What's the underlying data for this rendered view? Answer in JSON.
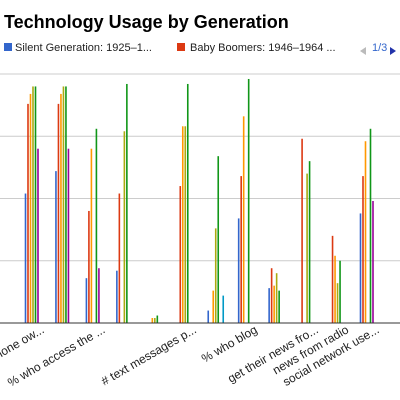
{
  "chart_data": {
    "type": "bar",
    "title": "Technology Usage by Generation",
    "xlabel": "",
    "ylabel": "",
    "ylim": [
      0,
      100
    ],
    "grid": true,
    "legend_position": "top",
    "legend_page": "1/3",
    "categories": [
      "% who own a cell phone",
      "% who own a cell phone",
      "% who access the ...",
      "% who access the ...",
      "# text messages",
      "# text messages p...",
      "# text messages p...",
      "% who blog",
      "% who blog",
      "get their news fro...",
      "news from radio",
      "social network use..."
    ],
    "tick_labels": [
      {
        "category_index": 0,
        "text": "phone ow..."
      },
      {
        "category_index": 2,
        "text": "% who access the ..."
      },
      {
        "category_index": 5,
        "text": "# text messages p..."
      },
      {
        "category_index": 7,
        "text": "% who blog"
      },
      {
        "category_index": 9,
        "text": "get their news fro..."
      },
      {
        "category_index": 10,
        "text": "news from radio"
      },
      {
        "category_index": 11,
        "text": "social network use..."
      }
    ],
    "series": [
      {
        "name": "Silent Generation: 1925–1...",
        "color": "#3366cc",
        "values": [
          52,
          61,
          18,
          21,
          0,
          0,
          5,
          42,
          14,
          0,
          0,
          44
        ]
      },
      {
        "name": "Baby Boomers: 1946–1964 ...",
        "color": "#dc3912",
        "values": [
          88,
          88,
          45,
          52,
          0,
          55,
          0,
          59,
          22,
          74,
          35,
          59
        ]
      },
      {
        "name": "",
        "color": "#ff9900",
        "values": [
          92,
          92,
          70,
          0,
          2,
          79,
          13,
          83,
          15,
          0,
          27,
          73
        ]
      },
      {
        "name": "",
        "color": "#aaaa11",
        "values": [
          95,
          95,
          0,
          77,
          2,
          79,
          38,
          0,
          20,
          60,
          16,
          0
        ]
      },
      {
        "name": "",
        "color": "#109618",
        "values": [
          95,
          95,
          78,
          96,
          3,
          96,
          67,
          98,
          13,
          65,
          25,
          78
        ]
      },
      {
        "name": "",
        "color": "#990099",
        "values": [
          70,
          70,
          22,
          0,
          0,
          0,
          0,
          0,
          0,
          0,
          0,
          49
        ]
      },
      {
        "name": "",
        "color": "#0099c6",
        "values": [
          0,
          0,
          0,
          0,
          0,
          0,
          11,
          0,
          0,
          0,
          0,
          0
        ]
      }
    ]
  }
}
